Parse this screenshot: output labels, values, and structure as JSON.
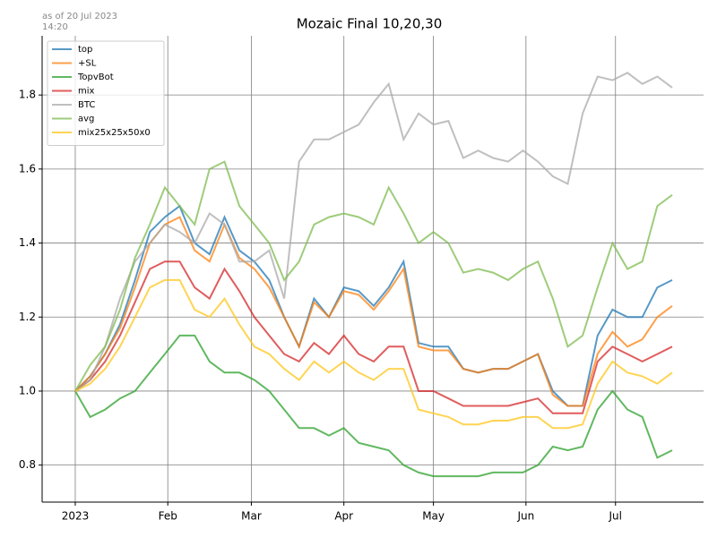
{
  "chart_data": {
    "type": "line",
    "title": "Mozaic Final 10,20,30",
    "note_lines": [
      "as of 20 Jul 2023",
      "14:20"
    ],
    "x": [
      0,
      5,
      10,
      15,
      20,
      25,
      30,
      35,
      40,
      45,
      50,
      55,
      60,
      65,
      70,
      75,
      80,
      85,
      90,
      95,
      100,
      105,
      110,
      115,
      120,
      125,
      130,
      135,
      140,
      145,
      150,
      155,
      160,
      165,
      170,
      175,
      180,
      185,
      190,
      195,
      200
    ],
    "xlim": [
      -11.1,
      210.5
    ],
    "xticks": [
      {
        "value": 0,
        "label": "2023"
      },
      {
        "value": 31,
        "label": "Feb"
      },
      {
        "value": 59,
        "label": "Mar"
      },
      {
        "value": 90,
        "label": "Apr"
      },
      {
        "value": 120,
        "label": "May"
      },
      {
        "value": 151,
        "label": "Jun"
      },
      {
        "value": 181,
        "label": "Jul"
      }
    ],
    "ylim": [
      0.7,
      1.96
    ],
    "yticks": [
      0.8,
      {
        "value": 1,
        "label": "1.0"
      },
      1.2,
      1.4,
      1.6,
      1.8
    ],
    "grid": true,
    "legend": "upper-left",
    "series": [
      {
        "name": "top",
        "color": "#1f77b4",
        "values": [
          1.0,
          1.04,
          1.1,
          1.18,
          1.3,
          1.43,
          1.47,
          1.5,
          1.4,
          1.37,
          1.47,
          1.38,
          1.35,
          1.3,
          1.2,
          1.12,
          1.25,
          1.2,
          1.28,
          1.27,
          1.23,
          1.28,
          1.35,
          1.13,
          1.12,
          1.12,
          1.06,
          1.05,
          1.06,
          1.06,
          1.08,
          1.1,
          1.0,
          0.96,
          0.96,
          1.15,
          1.22,
          1.2,
          1.2,
          1.28,
          1.3
        ]
      },
      {
        "name": "+SL",
        "color": "#ff7f0e",
        "values": [
          1.0,
          1.04,
          1.1,
          1.17,
          1.28,
          1.4,
          1.45,
          1.47,
          1.38,
          1.35,
          1.45,
          1.36,
          1.33,
          1.28,
          1.2,
          1.12,
          1.24,
          1.2,
          1.27,
          1.26,
          1.22,
          1.27,
          1.33,
          1.12,
          1.11,
          1.11,
          1.06,
          1.05,
          1.06,
          1.06,
          1.08,
          1.1,
          0.99,
          0.96,
          0.96,
          1.1,
          1.16,
          1.12,
          1.14,
          1.2,
          1.23
        ]
      },
      {
        "name": "TopvBot",
        "color": "#2ca02c",
        "values": [
          1.0,
          0.93,
          0.95,
          0.98,
          1.0,
          1.05,
          1.1,
          1.15,
          1.15,
          1.08,
          1.05,
          1.05,
          1.03,
          1.0,
          0.95,
          0.9,
          0.9,
          0.88,
          0.9,
          0.86,
          0.85,
          0.84,
          0.8,
          0.78,
          0.77,
          0.77,
          0.77,
          0.77,
          0.78,
          0.78,
          0.78,
          0.8,
          0.85,
          0.84,
          0.85,
          0.95,
          1.0,
          0.95,
          0.93,
          0.82,
          0.84
        ]
      },
      {
        "name": "mix",
        "color": "#d62728",
        "values": [
          1.0,
          1.03,
          1.08,
          1.15,
          1.24,
          1.33,
          1.35,
          1.35,
          1.28,
          1.25,
          1.33,
          1.27,
          1.2,
          1.15,
          1.1,
          1.08,
          1.13,
          1.1,
          1.15,
          1.1,
          1.08,
          1.12,
          1.12,
          1.0,
          1.0,
          0.98,
          0.96,
          0.96,
          0.96,
          0.96,
          0.97,
          0.98,
          0.94,
          0.94,
          0.94,
          1.08,
          1.12,
          1.1,
          1.08,
          1.1,
          1.12
        ]
      },
      {
        "name": "BTC",
        "color": "#aaaaaa",
        "values": [
          1.0,
          1.03,
          1.12,
          1.25,
          1.35,
          1.4,
          1.45,
          1.43,
          1.4,
          1.48,
          1.45,
          1.35,
          1.35,
          1.38,
          1.25,
          1.62,
          1.68,
          1.68,
          1.7,
          1.72,
          1.78,
          1.83,
          1.68,
          1.75,
          1.72,
          1.73,
          1.63,
          1.65,
          1.63,
          1.62,
          1.65,
          1.62,
          1.58,
          1.56,
          1.75,
          1.85,
          1.84,
          1.86,
          1.83,
          1.85,
          1.82
        ]
      },
      {
        "name": "avg",
        "color": "#7dbb4f",
        "values": [
          1.0,
          1.07,
          1.12,
          1.22,
          1.36,
          1.45,
          1.55,
          1.5,
          1.45,
          1.6,
          1.62,
          1.5,
          1.45,
          1.4,
          1.3,
          1.35,
          1.45,
          1.47,
          1.48,
          1.47,
          1.45,
          1.55,
          1.48,
          1.4,
          1.43,
          1.4,
          1.32,
          1.33,
          1.32,
          1.3,
          1.33,
          1.35,
          1.25,
          1.12,
          1.15,
          1.28,
          1.4,
          1.33,
          1.35,
          1.5,
          1.53
        ]
      },
      {
        "name": "mix25x25x50x0",
        "color": "#ffc61a",
        "values": [
          1.0,
          1.02,
          1.06,
          1.12,
          1.2,
          1.28,
          1.3,
          1.3,
          1.22,
          1.2,
          1.25,
          1.18,
          1.12,
          1.1,
          1.06,
          1.03,
          1.08,
          1.05,
          1.08,
          1.05,
          1.03,
          1.06,
          1.06,
          0.95,
          0.94,
          0.93,
          0.91,
          0.91,
          0.92,
          0.92,
          0.93,
          0.93,
          0.9,
          0.9,
          0.91,
          1.02,
          1.08,
          1.05,
          1.04,
          1.02,
          1.05
        ]
      }
    ]
  }
}
